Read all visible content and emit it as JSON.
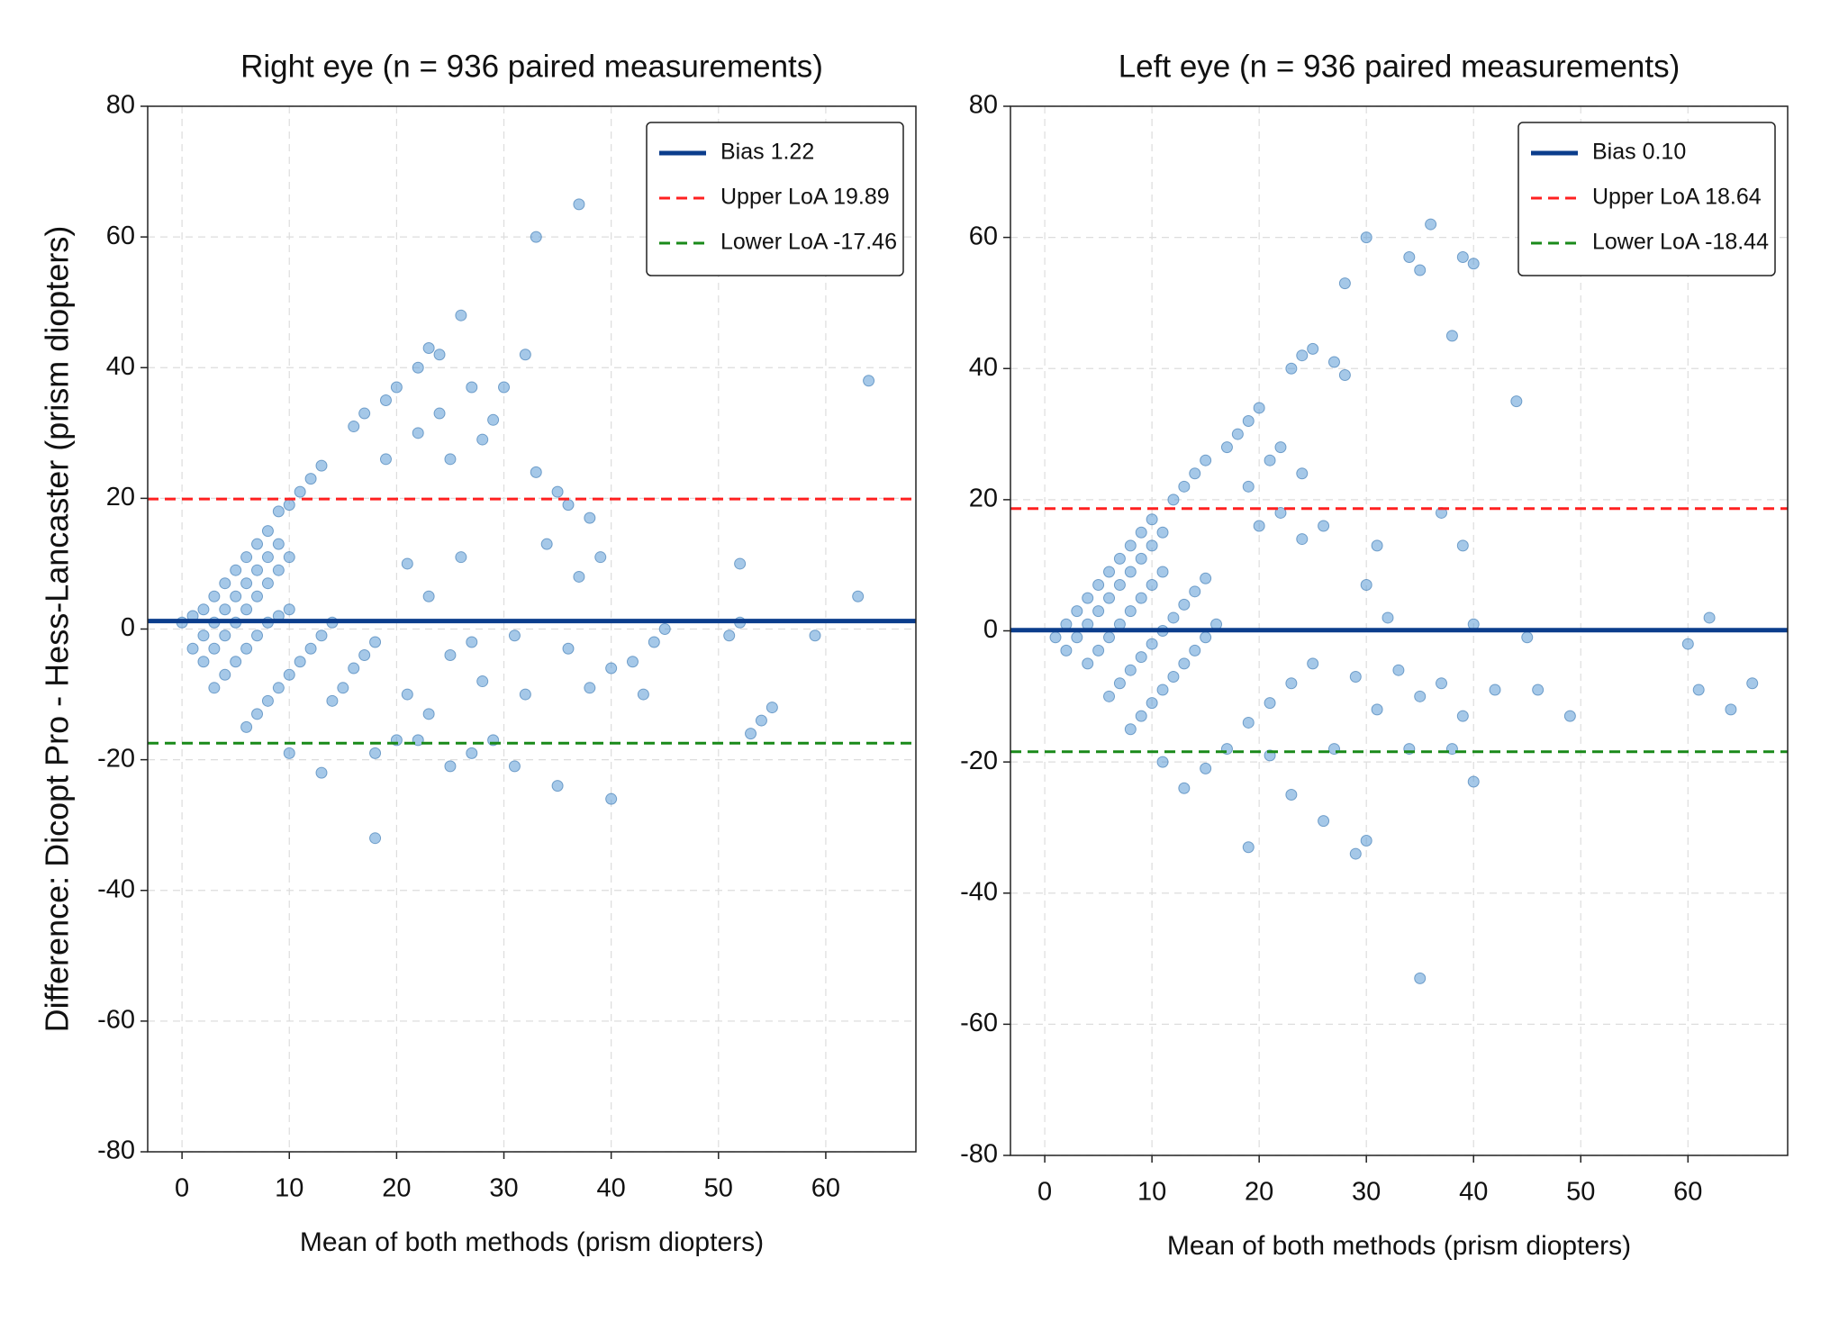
{
  "chart_data": [
    {
      "type": "scatter",
      "title": "Right eye (n = 936 paired measurements)",
      "xlabel": "Mean of both methods (prism diopters)",
      "ylabel": "Difference: Dicopt Pro - Hess-Lancaster (prism diopters)",
      "xlim": [
        -3.2,
        68.4
      ],
      "ylim": [
        -80,
        80
      ],
      "xticks": [
        0,
        10,
        20,
        30,
        40,
        50,
        60
      ],
      "yticks": [
        -80,
        -60,
        -40,
        -20,
        0,
        20,
        40,
        60,
        80
      ],
      "grid": true,
      "legend": "upper right",
      "points": {
        "color": "#5b9bd5",
        "x": [
          0,
          1,
          2,
          3,
          4,
          5,
          6,
          7,
          8,
          9,
          10,
          11,
          12,
          13,
          1,
          2,
          3,
          4,
          5,
          6,
          7,
          8,
          9,
          2,
          3,
          4,
          5,
          6,
          7,
          8,
          9,
          10,
          3,
          4,
          5,
          6,
          7,
          8,
          9,
          10,
          6,
          7,
          8,
          9,
          10,
          11,
          12,
          13,
          14,
          14,
          15,
          16,
          17,
          18,
          16,
          17,
          19,
          20,
          22,
          23,
          24,
          26,
          25,
          19,
          22,
          24,
          27,
          30,
          32,
          33,
          37,
          28,
          29,
          33,
          35,
          38,
          36,
          34,
          37,
          39,
          40,
          42,
          44,
          45,
          43,
          40,
          35,
          31,
          25,
          27,
          18,
          13,
          10,
          20,
          29,
          21,
          23,
          21,
          26,
          28,
          31,
          32,
          36,
          38,
          52,
          51,
          52,
          53,
          54,
          55,
          59,
          63,
          64,
          22,
          18,
          23,
          25,
          27
        ],
        "y": [
          1,
          2,
          3,
          5,
          7,
          9,
          11,
          13,
          15,
          18,
          19,
          21,
          23,
          25,
          -3,
          -1,
          1,
          3,
          5,
          7,
          9,
          11,
          13,
          -5,
          -3,
          -1,
          1,
          3,
          5,
          7,
          9,
          11,
          -9,
          -7,
          -5,
          -3,
          -1,
          1,
          2,
          3,
          -15,
          -13,
          -11,
          -9,
          -7,
          -5,
          -3,
          -1,
          1,
          -11,
          -9,
          -6,
          -4,
          -2,
          31,
          33,
          35,
          37,
          40,
          43,
          42,
          48,
          26,
          26,
          30,
          33,
          37,
          37,
          42,
          60,
          65,
          29,
          32,
          24,
          21,
          17,
          19,
          13,
          8,
          11,
          -6,
          -5,
          -2,
          0,
          -10,
          -26,
          -24,
          -21,
          -21,
          -19,
          -32,
          -22,
          -19,
          -17,
          -17,
          -10,
          5,
          10,
          11,
          -8,
          -1,
          -10,
          -3,
          -9,
          10,
          -1,
          1,
          -16,
          -14,
          -12,
          -1,
          5,
          38,
          -17,
          -19,
          -13,
          -4,
          -2
        ]
      },
      "lines": [
        {
          "name": "Bias 1.22",
          "value": 1.22,
          "color": "#0b3d8c",
          "dash": false
        },
        {
          "name": "Upper LoA 19.89",
          "value": 19.89,
          "color": "#ff2020",
          "dash": true
        },
        {
          "name": "Lower LoA -17.46",
          "value": -17.46,
          "color": "#1a8a1a",
          "dash": true
        }
      ]
    },
    {
      "type": "scatter",
      "title": "Left eye (n = 936 paired measurements)",
      "xlabel": "Mean of both methods (prism diopters)",
      "xlim": [
        -3.2,
        69.3
      ],
      "ylim": [
        -80,
        80
      ],
      "xticks": [
        0,
        10,
        20,
        30,
        40,
        50,
        60
      ],
      "yticks": [
        -80,
        -60,
        -40,
        -20,
        0,
        20,
        40,
        60,
        80
      ],
      "grid": true,
      "legend": "upper right",
      "points": {
        "color": "#5b9bd5",
        "x": [
          1,
          2,
          3,
          4,
          5,
          6,
          7,
          8,
          9,
          10,
          12,
          13,
          14,
          15,
          17,
          18,
          19,
          20,
          23,
          24,
          25,
          2,
          3,
          4,
          5,
          6,
          7,
          8,
          9,
          10,
          11,
          4,
          5,
          6,
          7,
          8,
          9,
          10,
          11,
          6,
          7,
          8,
          9,
          10,
          11,
          12,
          13,
          14,
          15,
          8,
          9,
          10,
          11,
          12,
          13,
          14,
          15,
          16,
          11,
          13,
          15,
          17,
          19,
          21,
          23,
          25,
          19,
          21,
          22,
          24,
          27,
          28,
          28,
          30,
          34,
          35,
          36,
          39,
          40,
          38,
          44,
          37,
          39,
          40,
          45,
          42,
          46,
          49,
          39,
          40,
          35,
          29,
          30,
          26,
          23,
          19,
          21,
          31,
          33,
          35,
          37,
          34,
          38,
          32,
          30,
          31,
          60,
          61,
          62,
          64,
          66,
          27,
          29,
          20,
          22,
          24,
          26
        ],
        "y": [
          -1,
          1,
          3,
          5,
          7,
          9,
          11,
          13,
          15,
          17,
          20,
          22,
          24,
          26,
          28,
          30,
          32,
          34,
          40,
          42,
          43,
          -3,
          -1,
          1,
          3,
          5,
          7,
          9,
          11,
          13,
          15,
          -5,
          -3,
          -1,
          1,
          3,
          5,
          7,
          9,
          -10,
          -8,
          -6,
          -4,
          -2,
          0,
          2,
          4,
          6,
          8,
          -15,
          -13,
          -11,
          -9,
          -7,
          -5,
          -3,
          -1,
          1,
          -20,
          -24,
          -21,
          -18,
          -14,
          -11,
          -8,
          -5,
          22,
          26,
          28,
          24,
          41,
          39,
          53,
          60,
          57,
          55,
          62,
          57,
          56,
          45,
          35,
          18,
          13,
          1,
          -1,
          -9,
          -9,
          -13,
          -13,
          -23,
          -53,
          -34,
          -32,
          -29,
          -25,
          -33,
          -19,
          -12,
          -6,
          -10,
          -8,
          -18,
          -18,
          2,
          7,
          13,
          -2,
          -9,
          2,
          -12,
          -8,
          -18,
          -7,
          16,
          18,
          14,
          16
        ]
      },
      "lines": [
        {
          "name": "Bias 0.10",
          "value": 0.1,
          "color": "#0b3d8c",
          "dash": false
        },
        {
          "name": "Upper LoA 18.64",
          "value": 18.64,
          "color": "#ff2020",
          "dash": true
        },
        {
          "name": "Lower LoA -18.44",
          "value": -18.44,
          "color": "#1a8a1a",
          "dash": true
        }
      ]
    }
  ]
}
